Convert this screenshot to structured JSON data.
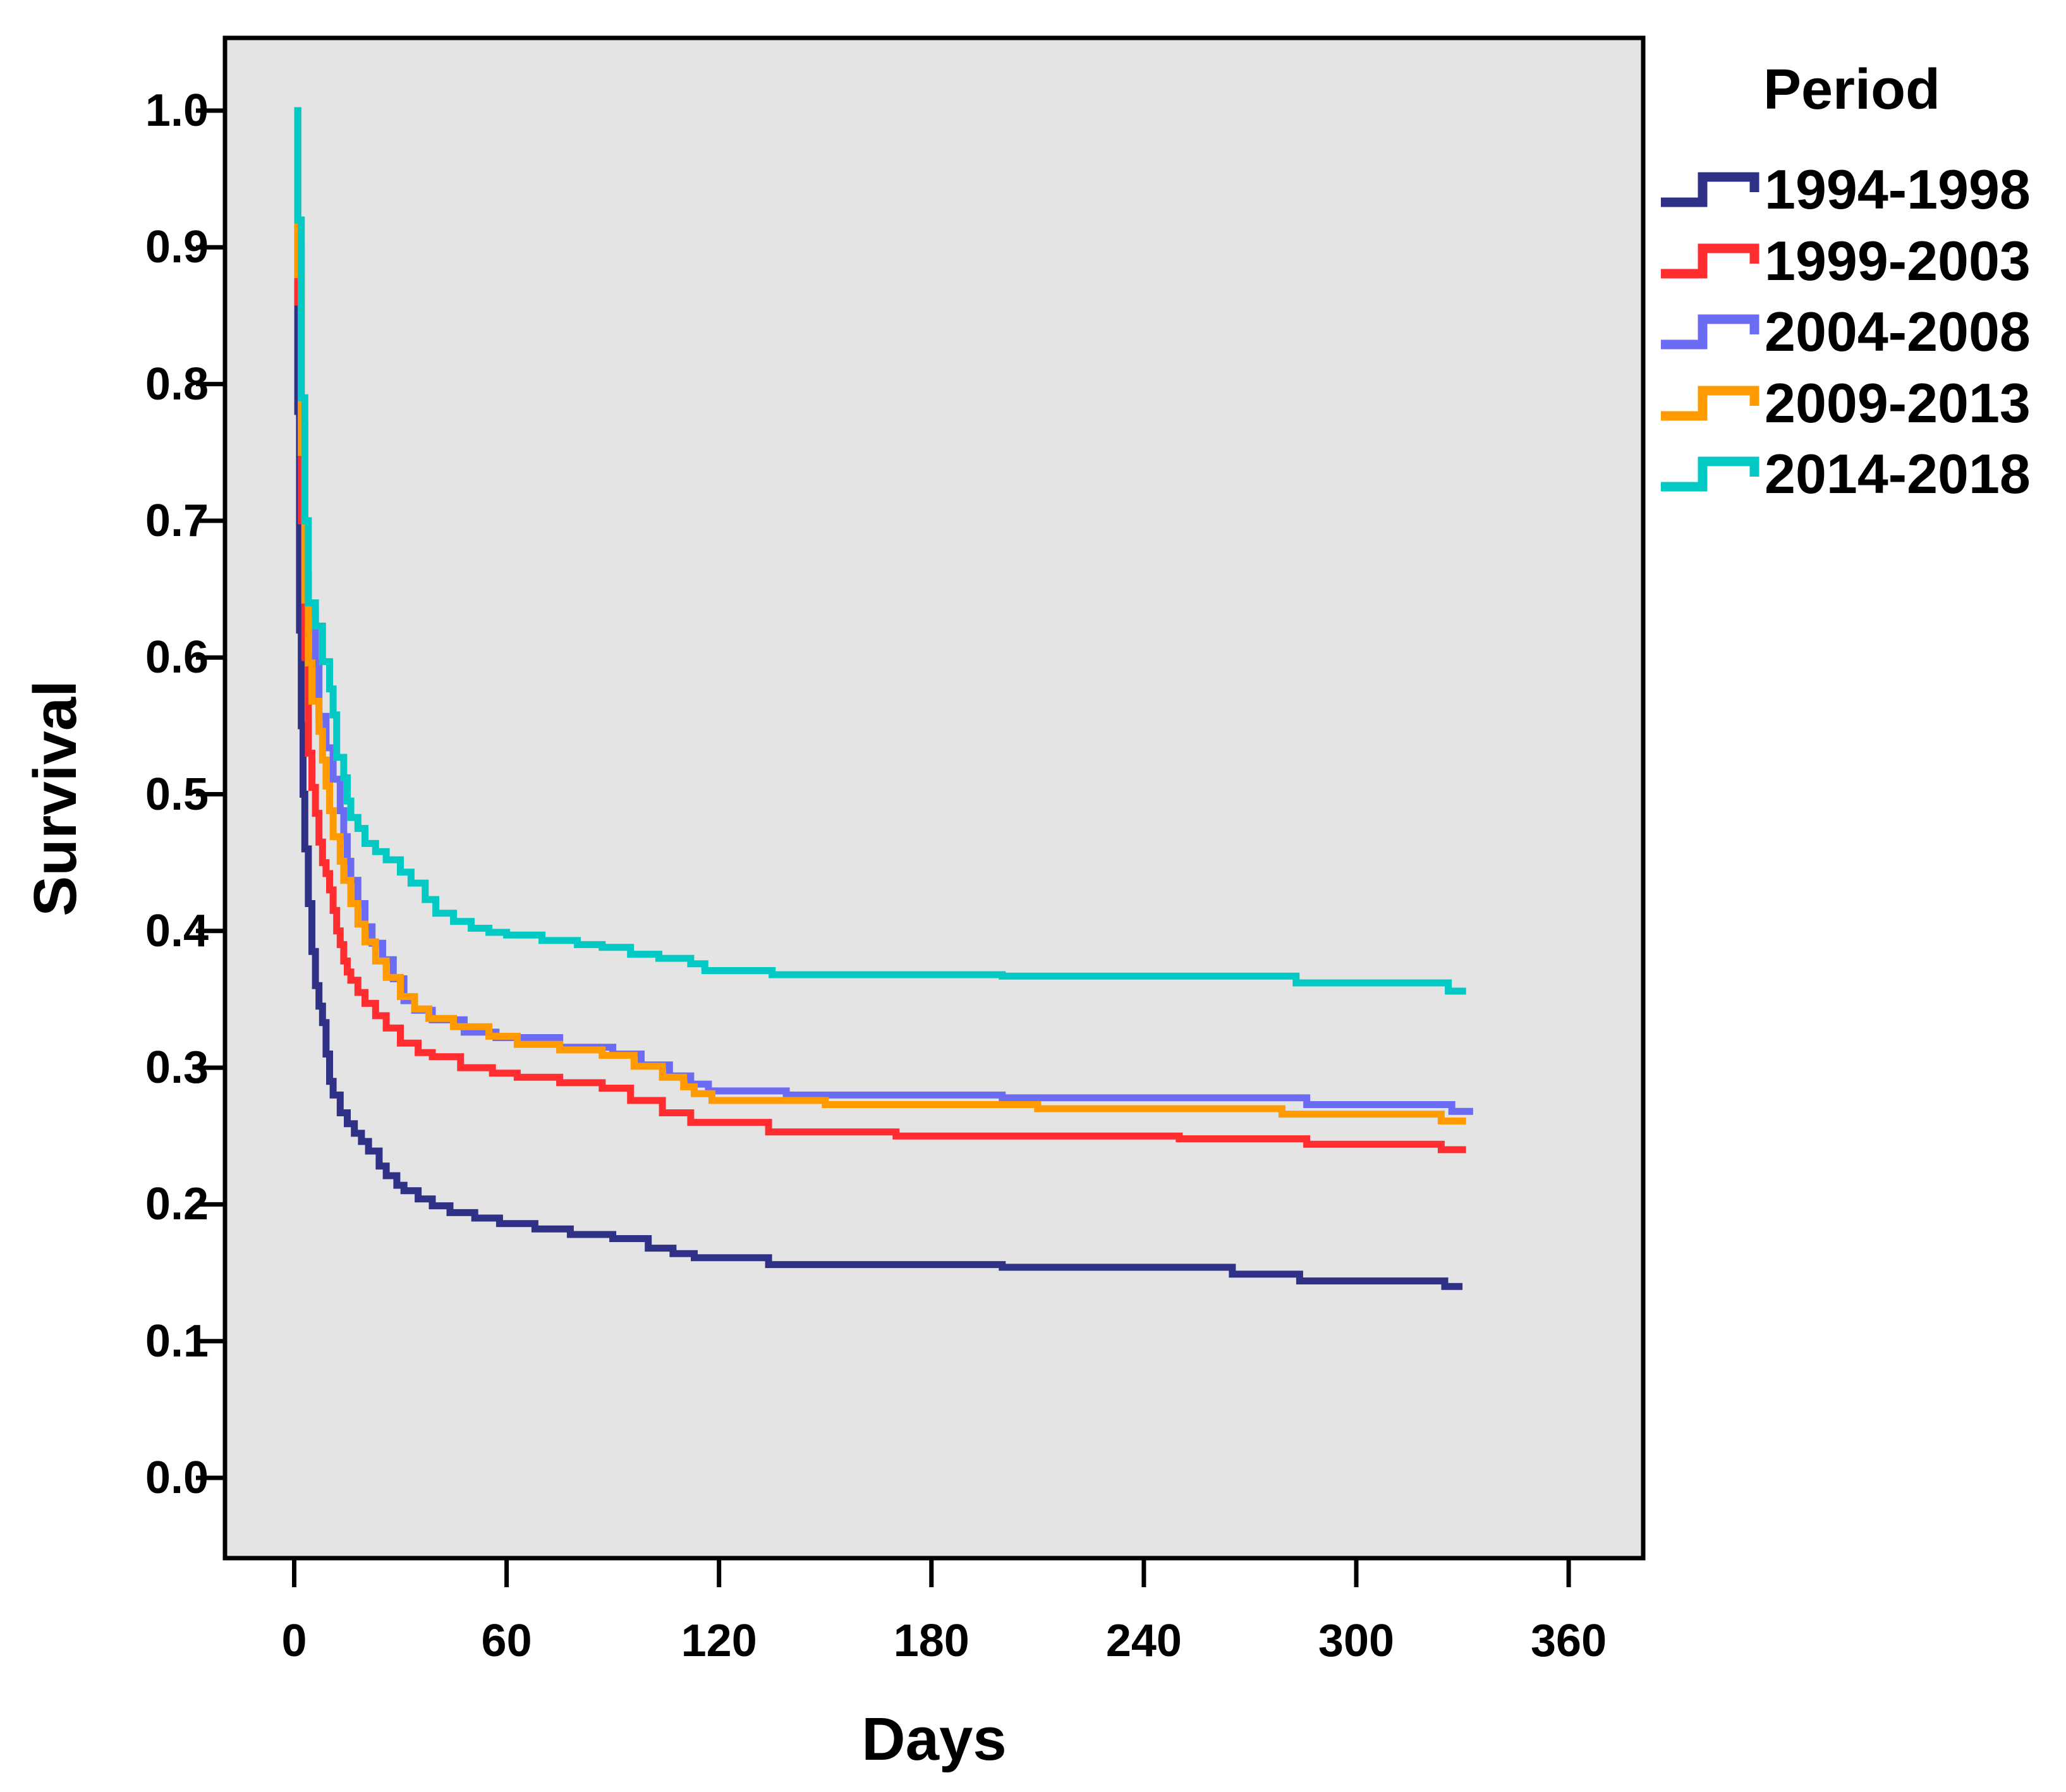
{
  "colors": {
    "page_bg": "#ffffff",
    "plot_bg": "#E5E4E4",
    "axis": "#000000",
    "text": "#000000"
  },
  "chart_data": {
    "type": "line",
    "subtype": "kaplan-meier-step",
    "title": "",
    "xlabel": "Days",
    "ylabel": "Survival",
    "legend_title": "Period",
    "legend_position": "top-right-outside",
    "grid": false,
    "xlim": [
      -19.5,
      381
    ],
    "ylim": [
      -0.059,
      1.053
    ],
    "xticks": {
      "values": [
        0,
        60,
        120,
        180,
        240,
        300,
        360
      ],
      "labels": [
        "0",
        "60",
        "120",
        "180",
        "240",
        "300",
        "360"
      ]
    },
    "yticks": {
      "values": [
        1.0,
        0.9,
        0.8,
        0.7,
        0.6,
        0.5,
        0.4,
        0.3,
        0.2,
        0.1,
        0.0
      ],
      "labels": [
        "1.0",
        "0.9",
        "0.8",
        "0.7",
        "0.6",
        "0.5",
        "0.4",
        "0.3",
        "0.2",
        "0.1",
        "0.0"
      ]
    },
    "series": [
      {
        "name": "1994-1998",
        "color": "#2F3187",
        "points": [
          [
            0,
            1.0
          ],
          [
            1,
            0.78
          ],
          [
            1.5,
            0.62
          ],
          [
            2,
            0.55
          ],
          [
            2.5,
            0.5
          ],
          [
            3,
            0.46
          ],
          [
            4,
            0.42
          ],
          [
            5,
            0.385
          ],
          [
            6,
            0.36
          ],
          [
            7,
            0.345
          ],
          [
            8,
            0.333
          ],
          [
            9,
            0.31
          ],
          [
            10,
            0.29
          ],
          [
            11,
            0.28
          ],
          [
            13,
            0.267
          ],
          [
            15,
            0.259
          ],
          [
            17,
            0.252
          ],
          [
            19,
            0.246
          ],
          [
            21,
            0.239
          ],
          [
            24,
            0.228
          ],
          [
            26,
            0.221
          ],
          [
            29,
            0.214
          ],
          [
            31,
            0.21
          ],
          [
            35,
            0.204
          ],
          [
            39,
            0.199
          ],
          [
            44,
            0.194
          ],
          [
            51,
            0.19
          ],
          [
            58,
            0.186
          ],
          [
            68,
            0.182
          ],
          [
            78,
            0.178
          ],
          [
            90,
            0.175
          ],
          [
            100,
            0.168
          ],
          [
            107,
            0.164
          ],
          [
            113,
            0.161
          ],
          [
            134,
            0.156
          ],
          [
            200,
            0.154
          ],
          [
            265,
            0.149
          ],
          [
            284,
            0.144
          ],
          [
            325,
            0.14
          ],
          [
            330,
            0.14
          ]
        ]
      },
      {
        "name": "1999-2003",
        "color": "#FF2D30",
        "points": [
          [
            0,
            1.0
          ],
          [
            1,
            0.86
          ],
          [
            2,
            0.7
          ],
          [
            3,
            0.6
          ],
          [
            4,
            0.53
          ],
          [
            5,
            0.505
          ],
          [
            6,
            0.486
          ],
          [
            7,
            0.465
          ],
          [
            8,
            0.45
          ],
          [
            9,
            0.442
          ],
          [
            10,
            0.43
          ],
          [
            11,
            0.415
          ],
          [
            12,
            0.4
          ],
          [
            13,
            0.39
          ],
          [
            14,
            0.378
          ],
          [
            15,
            0.37
          ],
          [
            16,
            0.364
          ],
          [
            18,
            0.355
          ],
          [
            20,
            0.347
          ],
          [
            23,
            0.338
          ],
          [
            26,
            0.329
          ],
          [
            30,
            0.318
          ],
          [
            35,
            0.311
          ],
          [
            39,
            0.308
          ],
          [
            47,
            0.3
          ],
          [
            56,
            0.296
          ],
          [
            63,
            0.293
          ],
          [
            75,
            0.289
          ],
          [
            87,
            0.285
          ],
          [
            95,
            0.276
          ],
          [
            104,
            0.267
          ],
          [
            112,
            0.26
          ],
          [
            134,
            0.253
          ],
          [
            170,
            0.25
          ],
          [
            250,
            0.248
          ],
          [
            286,
            0.244
          ],
          [
            324,
            0.24
          ],
          [
            331,
            0.24
          ]
        ]
      },
      {
        "name": "2004-2008",
        "color": "#6B6BF3",
        "points": [
          [
            0,
            1.0
          ],
          [
            1,
            0.9
          ],
          [
            2,
            0.77
          ],
          [
            3,
            0.66
          ],
          [
            4,
            0.633
          ],
          [
            6,
            0.596
          ],
          [
            7,
            0.557
          ],
          [
            9,
            0.534
          ],
          [
            11,
            0.511
          ],
          [
            13,
            0.488
          ],
          [
            14,
            0.469
          ],
          [
            15,
            0.451
          ],
          [
            16,
            0.437
          ],
          [
            18,
            0.42
          ],
          [
            20,
            0.403
          ],
          [
            22,
            0.391
          ],
          [
            25,
            0.379
          ],
          [
            28,
            0.365
          ],
          [
            31,
            0.349
          ],
          [
            34,
            0.342
          ],
          [
            39,
            0.335
          ],
          [
            48,
            0.326
          ],
          [
            57,
            0.322
          ],
          [
            75,
            0.315
          ],
          [
            90,
            0.31
          ],
          [
            98,
            0.302
          ],
          [
            106,
            0.294
          ],
          [
            112,
            0.288
          ],
          [
            117,
            0.283
          ],
          [
            139,
            0.28
          ],
          [
            200,
            0.278
          ],
          [
            286,
            0.273
          ],
          [
            327,
            0.268
          ],
          [
            333,
            0.268
          ]
        ]
      },
      {
        "name": "2009-2013",
        "color": "#FF9B00",
        "points": [
          [
            0,
            1.0
          ],
          [
            1,
            0.88
          ],
          [
            2,
            0.75
          ],
          [
            3,
            0.642
          ],
          [
            4,
            0.596
          ],
          [
            5,
            0.568
          ],
          [
            7,
            0.546
          ],
          [
            8,
            0.525
          ],
          [
            9,
            0.506
          ],
          [
            10,
            0.488
          ],
          [
            11,
            0.469
          ],
          [
            13,
            0.451
          ],
          [
            14,
            0.437
          ],
          [
            16,
            0.42
          ],
          [
            18,
            0.405
          ],
          [
            20,
            0.392
          ],
          [
            23,
            0.378
          ],
          [
            26,
            0.366
          ],
          [
            30,
            0.352
          ],
          [
            34,
            0.343
          ],
          [
            38,
            0.336
          ],
          [
            45,
            0.33
          ],
          [
            55,
            0.323
          ],
          [
            63,
            0.317
          ],
          [
            75,
            0.313
          ],
          [
            87,
            0.309
          ],
          [
            96,
            0.301
          ],
          [
            104,
            0.293
          ],
          [
            110,
            0.286
          ],
          [
            113,
            0.281
          ],
          [
            118,
            0.276
          ],
          [
            150,
            0.273
          ],
          [
            210,
            0.27
          ],
          [
            279,
            0.266
          ],
          [
            324,
            0.261
          ],
          [
            331,
            0.261
          ]
        ]
      },
      {
        "name": "2014-2018",
        "color": "#02C9C4",
        "points": [
          [
            0,
            1.0
          ],
          [
            1,
            0.92
          ],
          [
            2,
            0.79
          ],
          [
            3,
            0.7
          ],
          [
            4,
            0.64
          ],
          [
            6,
            0.623
          ],
          [
            8,
            0.597
          ],
          [
            10,
            0.577
          ],
          [
            11,
            0.558
          ],
          [
            12,
            0.527
          ],
          [
            14,
            0.512
          ],
          [
            15,
            0.495
          ],
          [
            16,
            0.483
          ],
          [
            18,
            0.475
          ],
          [
            20,
            0.464
          ],
          [
            23,
            0.458
          ],
          [
            26,
            0.452
          ],
          [
            30,
            0.443
          ],
          [
            33,
            0.435
          ],
          [
            37,
            0.423
          ],
          [
            40,
            0.413
          ],
          [
            45,
            0.407
          ],
          [
            50,
            0.402
          ],
          [
            55,
            0.399
          ],
          [
            60,
            0.397
          ],
          [
            70,
            0.393
          ],
          [
            80,
            0.39
          ],
          [
            87,
            0.388
          ],
          [
            95,
            0.383
          ],
          [
            103,
            0.38
          ],
          [
            112,
            0.376
          ],
          [
            116,
            0.371
          ],
          [
            135,
            0.368
          ],
          [
            200,
            0.367
          ],
          [
            283,
            0.362
          ],
          [
            326,
            0.356
          ],
          [
            331,
            0.356
          ]
        ]
      }
    ]
  }
}
